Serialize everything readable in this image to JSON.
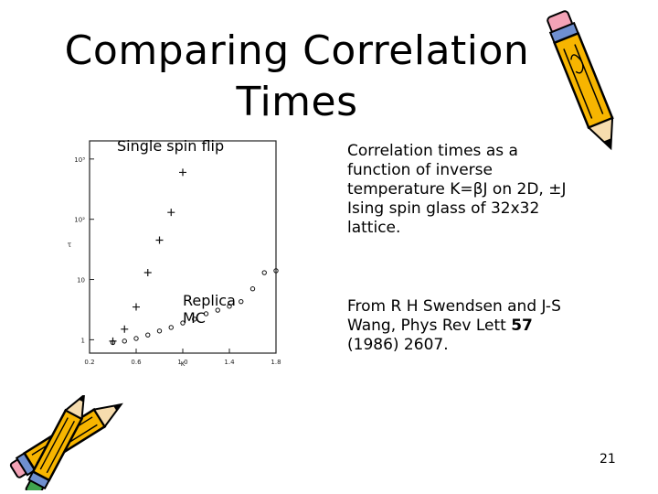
{
  "slide": {
    "title_line1": "Comparing Correlation",
    "title_line2": "Times",
    "paragraph1": "Correlation times as a function of inverse temperature K=βJ on 2D, ±J Ising spin glass of 32x32 lattice.",
    "paragraph2_pre": "From R H Swendsen and J-S Wang, Phys Rev Lett ",
    "paragraph2_bold": "57",
    "paragraph2_post": " (1986) 2607.",
    "page_number": "21",
    "decor_icons": [
      "pencil-icon",
      "pencil-icon"
    ]
  },
  "chart_data": {
    "type": "scatter",
    "xlabel": "K",
    "ylabel": "τ",
    "y_scale": "log",
    "xlim": [
      0.2,
      1.8
    ],
    "ylim": [
      0.6,
      2000
    ],
    "x_ticks": [
      "0.2",
      "0.6",
      "1.0",
      "1.4",
      "1.8"
    ],
    "y_ticks": [
      "1",
      "10",
      "10²",
      "10³"
    ],
    "y_tick_values": [
      1,
      10,
      100,
      1000
    ],
    "annotations": [
      "Single spin flip",
      "Replica MC"
    ],
    "series": [
      {
        "marker": "plus",
        "x": [
          0.4,
          0.5,
          0.6,
          0.7,
          0.8,
          0.9,
          1.0
        ],
        "y": [
          0.95,
          1.5,
          3.5,
          13,
          45,
          130,
          600
        ]
      },
      {
        "marker": "circle",
        "x": [
          0.4,
          0.5,
          0.6,
          0.7,
          0.8,
          0.9,
          1.0,
          1.1,
          1.2,
          1.3,
          1.4,
          1.5,
          1.6,
          1.7,
          1.8
        ],
        "y": [
          0.9,
          0.95,
          1.05,
          1.2,
          1.4,
          1.6,
          1.9,
          2.2,
          2.7,
          3.1,
          3.6,
          4.3,
          7,
          13,
          14
        ]
      }
    ]
  }
}
